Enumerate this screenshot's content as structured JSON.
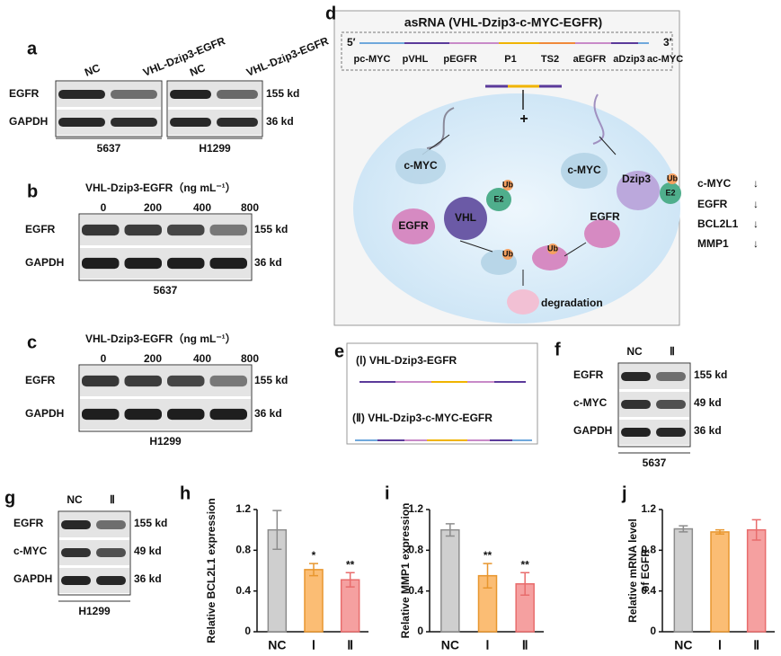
{
  "figure": {
    "a": {
      "letter": "a",
      "lanes": [
        "NC",
        "VHL-Dzip3-EGFR",
        "NC",
        "VHL-Dzip3-EGFR"
      ],
      "rows": [
        "EGFR",
        "GAPDH"
      ],
      "sizes": [
        "155 kd",
        "36 kd"
      ],
      "cells": [
        "5637",
        "H1299"
      ]
    },
    "b": {
      "letter": "b",
      "treatment": "VHL-Dzip3-EGFR（ng mL⁻¹）",
      "doses": [
        0,
        200,
        400,
        800
      ],
      "rows": [
        "EGFR",
        "GAPDH"
      ],
      "sizes": [
        "155 kd",
        "36 kd"
      ],
      "cell": "5637"
    },
    "c": {
      "letter": "c",
      "treatment": "VHL-Dzip3-EGFR（ng mL⁻¹）",
      "doses": [
        0,
        200,
        400,
        800
      ],
      "rows": [
        "EGFR",
        "GAPDH"
      ],
      "sizes": [
        "155 kd",
        "36 kd"
      ],
      "cell": "H1299"
    },
    "d": {
      "letter": "d",
      "title": "asRNA (VHL-Dzip3-c-MYC-EGFR)",
      "five": "5′",
      "three": "3′",
      "segments": [
        "pc-MYC",
        "pVHL",
        "pEGFR",
        "P1",
        "TS2",
        "aEGFR",
        "aDzip3",
        "ac-MYC"
      ],
      "plus": "+",
      "proteins": [
        "c-MYC",
        "VHL",
        "E2",
        "Ub",
        "EGFR",
        "c-MYC",
        "Dzip3",
        "E2",
        "Ub",
        "EGFR",
        "Ub",
        "Ub"
      ],
      "degradation": "degradation",
      "effects": [
        {
          "name": "c-MYC",
          "arrow": "↓"
        },
        {
          "name": "EGFR",
          "arrow": "↓"
        },
        {
          "name": "BCL2L1",
          "arrow": "↓"
        },
        {
          "name": "MMP1",
          "arrow": "↓"
        }
      ]
    },
    "e": {
      "letter": "e",
      "constructs": [
        "(Ⅰ) VHL-Dzip3-EGFR",
        "(Ⅱ) VHL-Dzip3-c-MYC-EGFR"
      ]
    },
    "f": {
      "letter": "f",
      "lanes": [
        "NC",
        "Ⅱ"
      ],
      "rows": [
        "EGFR",
        "c-MYC",
        "GAPDH"
      ],
      "sizes": [
        "155 kd",
        "49 kd",
        "36 kd"
      ],
      "cell": "5637"
    },
    "g": {
      "letter": "g",
      "lanes": [
        "NC",
        "Ⅱ"
      ],
      "rows": [
        "EGFR",
        "c-MYC",
        "GAPDH"
      ],
      "sizes": [
        "155 kd",
        "49 kd",
        "36 kd"
      ],
      "cell": "H1299"
    }
  },
  "chart_data": [
    {
      "type": "bar",
      "panel": "h",
      "ylabel": [
        "Relative BCL2L1 expression"
      ],
      "categories": [
        "NC",
        "Ⅰ",
        "Ⅱ"
      ],
      "values": [
        1.0,
        0.61,
        0.51
      ],
      "errors": [
        0.19,
        0.06,
        0.07
      ],
      "annotations": [
        null,
        "*",
        "**"
      ],
      "colors": [
        "#cfcfcf",
        "#fbbd74",
        "#f5a0a0"
      ],
      "edge_colors": [
        "#8c8c8c",
        "#e8962e",
        "#e86c6c"
      ],
      "ylim": [
        0,
        1.2
      ],
      "yticks": [
        0,
        0.4,
        0.8,
        1.2
      ]
    },
    {
      "type": "bar",
      "panel": "i",
      "ylabel": [
        "Relative MMP1 expression"
      ],
      "categories": [
        "NC",
        "Ⅰ",
        "Ⅱ"
      ],
      "values": [
        1.0,
        0.55,
        0.47
      ],
      "errors": [
        0.06,
        0.12,
        0.11
      ],
      "annotations": [
        null,
        "**",
        "**"
      ],
      "colors": [
        "#cfcfcf",
        "#fbbd74",
        "#f5a0a0"
      ],
      "edge_colors": [
        "#8c8c8c",
        "#e8962e",
        "#e86c6c"
      ],
      "ylim": [
        0,
        1.2
      ],
      "yticks": [
        0,
        0.4,
        0.8,
        1.2
      ]
    },
    {
      "type": "bar",
      "panel": "j",
      "ylabel": [
        "Relative mRNA level",
        "of EGFR"
      ],
      "categories": [
        "NC",
        "Ⅰ",
        "Ⅱ"
      ],
      "values": [
        1.01,
        0.98,
        1.0
      ],
      "errors": [
        0.03,
        0.02,
        0.1
      ],
      "annotations": [
        null,
        null,
        null
      ],
      "colors": [
        "#cfcfcf",
        "#fbbd74",
        "#f5a0a0"
      ],
      "edge_colors": [
        "#8c8c8c",
        "#e8962e",
        "#e86c6c"
      ],
      "ylim": [
        0,
        1.2
      ],
      "yticks": [
        0,
        0.4,
        0.8,
        1.2
      ]
    }
  ]
}
